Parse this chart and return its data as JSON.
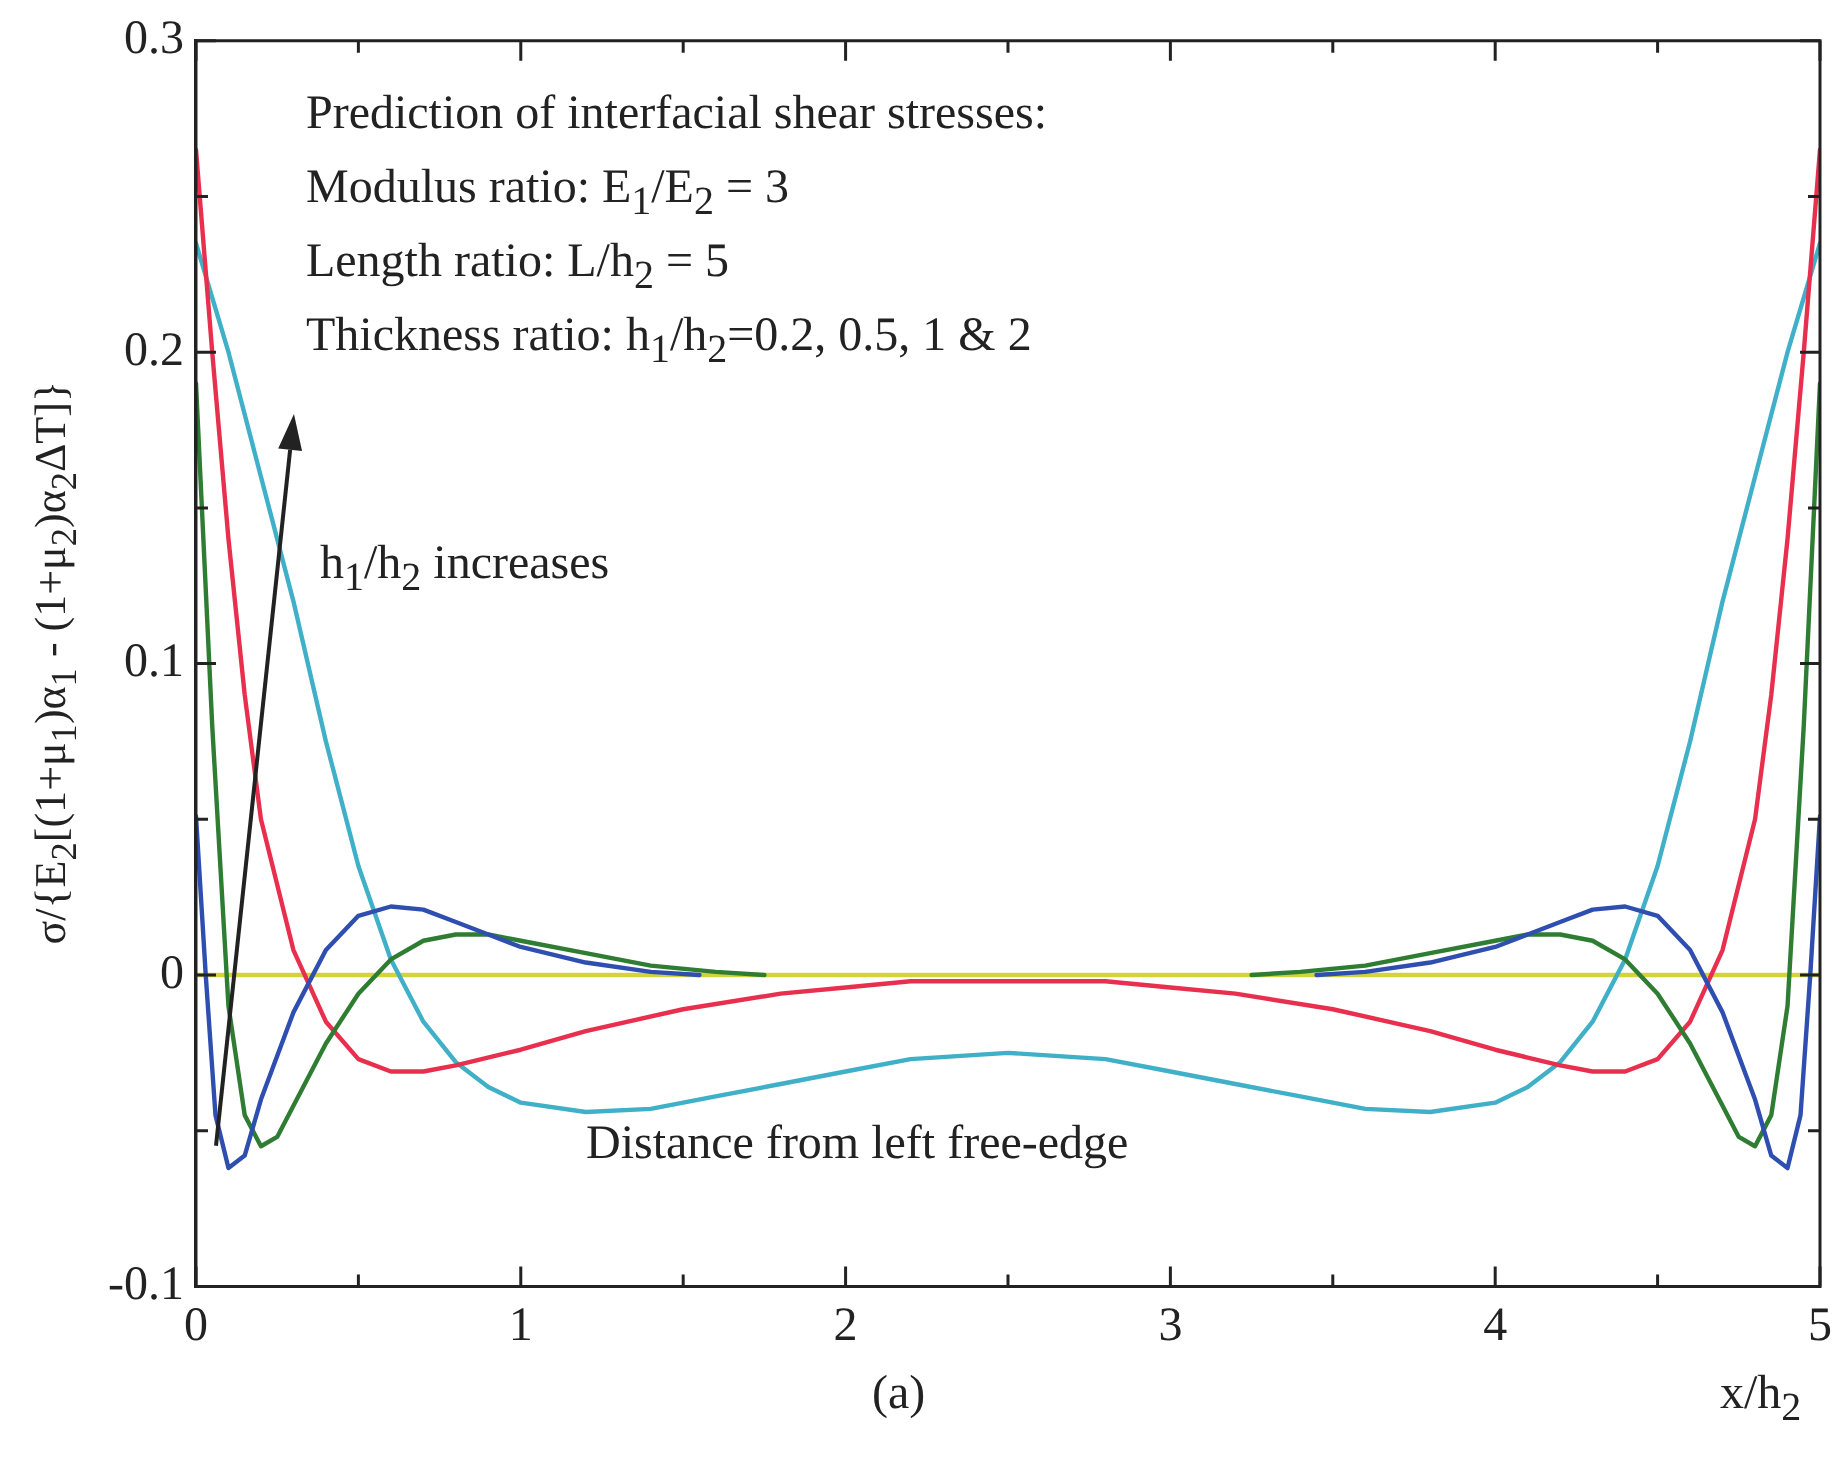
{
  "chart_data": {
    "type": "line",
    "xlabel": "x/h$_{2}$",
    "ylabel": "σ/{E$_{2}$[(1+μ$_{1}$)α$_{1}$ - (1+μ$_{2}$)α$_{2}$ΔT]}",
    "xlim": [
      0,
      5
    ],
    "ylim": [
      -0.1,
      0.3
    ],
    "xticks": [
      0,
      {
        "value": 0.5,
        "label": null
      },
      1,
      {
        "value": 1.5,
        "label": null
      },
      2,
      {
        "value": 2.5,
        "label": null
      },
      3,
      {
        "value": 3.5,
        "label": null
      },
      4,
      {
        "value": 4.5,
        "label": null
      },
      5
    ],
    "yticks": [
      -0.1,
      {
        "value": -0.05,
        "label": null
      },
      0,
      {
        "value": 0.05,
        "label": null
      },
      0.1,
      {
        "value": 0.15,
        "label": null
      },
      0.2,
      {
        "value": 0.25,
        "label": null
      },
      0.3
    ],
    "grid": false,
    "legend": false,
    "marker": "none",
    "line_style": "solid",
    "series": [
      {
        "color": "#2f4fb0",
        "x": [
          0,
          0.03,
          0.06,
          0.1,
          0.15,
          0.2,
          0.3,
          0.4,
          0.5,
          0.6,
          0.7,
          0.8,
          0.9,
          1,
          1.2,
          1.4,
          1.55,
          2.5,
          3.45,
          3.6,
          3.8,
          4,
          4.1,
          4.2,
          4.3,
          4.4,
          4.5,
          4.6,
          4.7,
          4.8,
          4.85,
          4.9,
          4.94,
          4.97,
          5
        ],
        "values": [
          0.051,
          0,
          -0.045,
          -0.062,
          -0.058,
          -0.04,
          -0.012,
          0.008,
          0.019,
          0.022,
          0.021,
          0.017,
          0.013,
          0.009,
          0.004,
          0.001,
          0,
          null,
          0,
          0.001,
          0.004,
          0.009,
          0.013,
          0.017,
          0.021,
          0.022,
          0.019,
          0.008,
          -0.012,
          -0.04,
          -0.058,
          -0.062,
          -0.045,
          0,
          0.051
        ]
      },
      {
        "color": "#2e7d32",
        "x": [
          0,
          0.05,
          0.1,
          0.15,
          0.2,
          0.25,
          0.3,
          0.4,
          0.5,
          0.6,
          0.7,
          0.8,
          0.9,
          1,
          1.2,
          1.4,
          1.6,
          1.75,
          2.5,
          3.25,
          3.4,
          3.6,
          3.8,
          4,
          4.1,
          4.2,
          4.3,
          4.4,
          4.5,
          4.6,
          4.7,
          4.75,
          4.8,
          4.85,
          4.9,
          4.95,
          5
        ],
        "values": [
          0.19,
          0.08,
          -0.01,
          -0.045,
          -0.055,
          -0.052,
          -0.042,
          -0.022,
          -0.006,
          0.005,
          0.011,
          0.013,
          0.013,
          0.011,
          0.007,
          0.003,
          0.001,
          0,
          null,
          0,
          0.001,
          0.003,
          0.007,
          0.011,
          0.013,
          0.013,
          0.011,
          0.005,
          -0.006,
          -0.022,
          -0.042,
          -0.052,
          -0.055,
          -0.045,
          -0.01,
          0.08,
          0.19
        ]
      },
      {
        "color": "#e8304e",
        "x": [
          0,
          0.05,
          0.1,
          0.15,
          0.2,
          0.3,
          0.4,
          0.5,
          0.6,
          0.7,
          0.8,
          1,
          1.2,
          1.5,
          1.8,
          2,
          2.2,
          2.5,
          2.8,
          3,
          3.2,
          3.5,
          3.8,
          4,
          4.2,
          4.3,
          4.4,
          4.5,
          4.6,
          4.7,
          4.8,
          4.85,
          4.9,
          4.95,
          5
        ],
        "values": [
          0.265,
          0.2,
          0.14,
          0.09,
          0.05,
          0.008,
          -0.015,
          -0.027,
          -0.031,
          -0.031,
          -0.029,
          -0.024,
          -0.018,
          -0.011,
          -0.006,
          -0.004,
          -0.002,
          -0.002,
          -0.002,
          -0.004,
          -0.006,
          -0.011,
          -0.018,
          -0.024,
          -0.029,
          -0.031,
          -0.031,
          -0.027,
          -0.015,
          0.008,
          0.05,
          0.09,
          0.14,
          0.2,
          0.265
        ]
      },
      {
        "color": "#3fb0c8",
        "x": [
          0,
          0.1,
          0.2,
          0.3,
          0.4,
          0.5,
          0.6,
          0.7,
          0.8,
          0.9,
          1,
          1.2,
          1.4,
          1.6,
          1.8,
          2,
          2.2,
          2.5,
          2.8,
          3,
          3.2,
          3.4,
          3.6,
          3.8,
          4,
          4.1,
          4.2,
          4.3,
          4.4,
          4.5,
          4.6,
          4.7,
          4.8,
          4.9,
          5
        ],
        "values": [
          0.235,
          0.2,
          0.16,
          0.12,
          0.075,
          0.035,
          0.005,
          -0.015,
          -0.028,
          -0.036,
          -0.041,
          -0.044,
          -0.043,
          -0.039,
          -0.035,
          -0.031,
          -0.027,
          -0.025,
          -0.027,
          -0.031,
          -0.035,
          -0.039,
          -0.043,
          -0.044,
          -0.041,
          -0.036,
          -0.028,
          -0.015,
          0.005,
          0.035,
          0.075,
          0.12,
          0.16,
          0.2,
          0.235
        ]
      },
      {
        "color": "#d4d43a",
        "x": [
          0,
          5
        ],
        "values": [
          0,
          0
        ]
      }
    ],
    "annotations": [
      "Prediction of interfacial shear stresses:",
      "Modulus ratio: E$_{1}$/E$_{2}$ = 3",
      "Length ratio: L/h$_{2}$ = 5",
      "Thickness ratio: h$_{1}$/h$_{2}$=0.2, 0.5, 1 & 2",
      "h$_{1}$/h$_{2}$ increases",
      "Distance from left free-edge",
      "(a)"
    ]
  }
}
